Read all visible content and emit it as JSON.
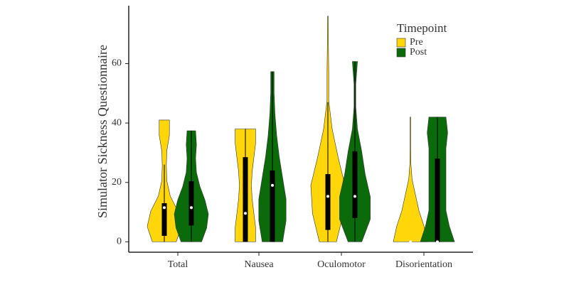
{
  "chart_data": {
    "type": "violin",
    "y_label": "Simulator Sickness Questionnaire",
    "categories": [
      "Total",
      "Nausea",
      "Oculomotor",
      "Disorientation"
    ],
    "ylim": [
      -3.5,
      79.5
    ],
    "yticks": [
      0,
      20,
      40,
      60
    ],
    "legend_title": "Timepoint",
    "legend_position": "top-right",
    "series": [
      {
        "name": "Pre",
        "color": "#ffd60a",
        "values": [
          {
            "min": 0,
            "max": 41,
            "whisker_low": 0,
            "whisker_high": 26,
            "q1": 2,
            "median": 11.5,
            "q3": 13,
            "density": [
              0.7,
              1,
              0.8,
              0.35,
              0.15,
              0.12,
              0.15,
              0.3,
              0.3
            ]
          },
          {
            "min": 0,
            "max": 38,
            "whisker_low": 0,
            "whisker_high": 38,
            "q1": 0,
            "median": 9.6,
            "q3": 28.5,
            "density": [
              0.6,
              0.6,
              0.5,
              0.4,
              0.35,
              0.4,
              0.5,
              0.6,
              0.6
            ]
          },
          {
            "min": 0,
            "max": 76,
            "whisker_low": 0,
            "whisker_high": 47,
            "q1": 4,
            "median": 15.3,
            "q3": 22.8,
            "density": [
              0.5,
              0.9,
              1,
              0.6,
              0.25,
              0.05,
              0.05,
              0.03,
              0.02
            ]
          },
          {
            "min": 0,
            "max": 42,
            "whisker_low": 0,
            "whisker_high": 0,
            "q1": 0,
            "median": 0,
            "q3": 0,
            "density": [
              1,
              0.8,
              0.5,
              0.3,
              0.1,
              0.03,
              0.02,
              0.02,
              0.02
            ]
          }
        ]
      },
      {
        "name": "Post",
        "color": "#0b6b0b",
        "values": [
          {
            "min": 0,
            "max": 37.4,
            "whisker_low": 0,
            "whisker_high": 37.4,
            "q1": 5.5,
            "median": 11.5,
            "q3": 20.4,
            "density": [
              0.6,
              0.9,
              1,
              0.8,
              0.5,
              0.3,
              0.25,
              0.3,
              0.25
            ]
          },
          {
            "min": 0,
            "max": 57.3,
            "whisker_low": 0,
            "whisker_high": 57.3,
            "q1": 0,
            "median": 19,
            "q3": 24,
            "density": [
              0.6,
              0.8,
              0.8,
              0.6,
              0.4,
              0.25,
              0.15,
              0.1,
              0.1
            ]
          },
          {
            "min": 0,
            "max": 60.7,
            "whisker_low": 0,
            "whisker_high": 60.7,
            "q1": 8,
            "median": 15.3,
            "q3": 30.5,
            "density": [
              0.4,
              0.9,
              0.9,
              0.6,
              0.4,
              0.15,
              0.05,
              0.05,
              0.15
            ]
          },
          {
            "min": 0,
            "max": 42,
            "whisker_low": 0,
            "whisker_high": 42,
            "q1": 0,
            "median": 0,
            "q3": 28,
            "density": [
              1,
              0.7,
              0.5,
              0.5,
              0.5,
              0.5,
              0.5,
              0.6,
              0.5
            ]
          }
        ]
      }
    ]
  }
}
